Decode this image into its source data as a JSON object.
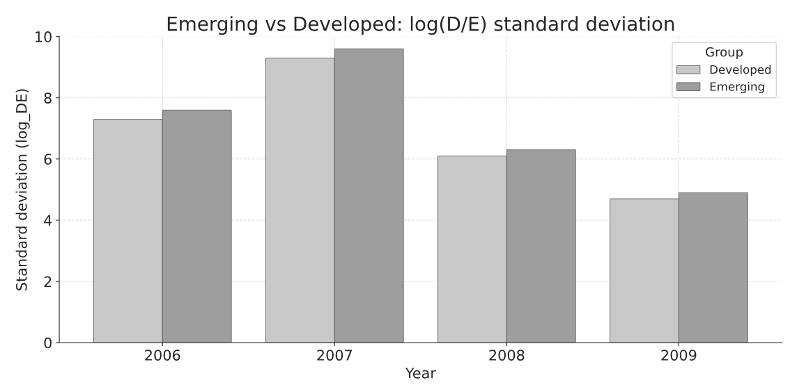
{
  "chart_data": {
    "type": "bar",
    "title": "Emerging vs Developed: log(D/E) standard deviation",
    "xlabel": "Year",
    "ylabel": "Standard deviation (log_DE)",
    "legend_title": "Group",
    "categories": [
      "2006",
      "2007",
      "2008",
      "2009"
    ],
    "series": [
      {
        "name": "Developed",
        "color": "#c8c8c8",
        "values": [
          7.3,
          9.3,
          6.1,
          4.7
        ]
      },
      {
        "name": "Emerging",
        "color": "#9e9e9e",
        "values": [
          7.6,
          9.6,
          6.3,
          4.9
        ]
      }
    ],
    "ylim": [
      0,
      10
    ],
    "yticks": [
      0,
      2,
      4,
      6,
      8,
      10
    ],
    "grid": true,
    "legend": "top right"
  }
}
